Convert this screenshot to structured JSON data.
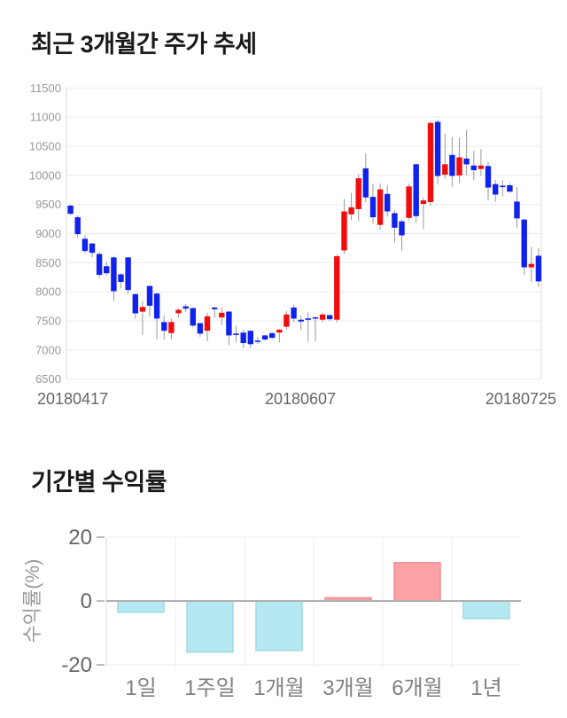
{
  "page": {
    "section1_title": "최근 3개월간 주가 추세",
    "section2_title": "기간별 수익률",
    "background": "#ffffff"
  },
  "chart_data": [
    {
      "type": "candlestick",
      "title": "최근 3개월간 주가 추세",
      "x_tick_labels": [
        "20180417",
        "20180607",
        "20180725"
      ],
      "y_ticks": [
        11500,
        11000,
        10500,
        10000,
        9500,
        9000,
        8500,
        8000,
        7500,
        7000,
        6500
      ],
      "ylim": [
        6500,
        11500
      ],
      "grid": true,
      "legend": "none",
      "colors": {
        "up": "#f30c0c",
        "down": "#1022ee",
        "wick": "#999999",
        "grid": "#ebebeb",
        "axis_border": "#dddddd",
        "y_tick_text": "#999999",
        "x_tick_text": "#666666"
      },
      "ohlc_note": "each entry is [open, high, low, close]; red = close>=open, blue = close<open",
      "ohlc": [
        [
          9480,
          9500,
          9320,
          9340
        ],
        [
          9280,
          9310,
          8930,
          8990
        ],
        [
          8910,
          8970,
          8660,
          8700
        ],
        [
          8830,
          8840,
          8590,
          8670
        ],
        [
          8650,
          8680,
          8240,
          8290
        ],
        [
          8440,
          8520,
          8280,
          8320
        ],
        [
          8590,
          8620,
          7840,
          8010
        ],
        [
          8300,
          8320,
          8060,
          8170
        ],
        [
          8590,
          8600,
          7960,
          8030
        ],
        [
          7960,
          7970,
          7540,
          7630
        ],
        [
          7660,
          7840,
          7260,
          7740
        ],
        [
          8100,
          8110,
          7570,
          7760
        ],
        [
          7970,
          7990,
          7180,
          7540
        ],
        [
          7480,
          7600,
          7180,
          7330
        ],
        [
          7290,
          7540,
          7180,
          7480
        ],
        [
          7630,
          7720,
          7560,
          7690
        ],
        [
          7750,
          7790,
          7650,
          7710
        ],
        [
          7720,
          7730,
          7390,
          7420
        ],
        [
          7460,
          7470,
          7230,
          7280
        ],
        [
          7330,
          7640,
          7150,
          7580
        ],
        [
          7730,
          7740,
          7550,
          7700
        ],
        [
          7560,
          7730,
          7430,
          7640
        ],
        [
          7660,
          7670,
          7080,
          7250
        ],
        [
          7270,
          7420,
          7140,
          7250
        ],
        [
          7300,
          7350,
          7030,
          7120
        ],
        [
          7330,
          7340,
          7030,
          7100
        ],
        [
          7150,
          7230,
          7100,
          7140
        ],
        [
          7250,
          7260,
          7160,
          7180
        ],
        [
          7290,
          7300,
          7190,
          7210
        ],
        [
          7300,
          7360,
          7130,
          7350
        ],
        [
          7400,
          7670,
          7350,
          7610
        ],
        [
          7730,
          7780,
          7480,
          7540
        ],
        [
          7520,
          7590,
          7340,
          7490
        ],
        [
          7530,
          7650,
          7140,
          7520
        ],
        [
          7550,
          7570,
          7150,
          7540
        ],
        [
          7520,
          7640,
          7480,
          7610
        ],
        [
          7600,
          7610,
          7500,
          7530
        ],
        [
          7520,
          8640,
          7480,
          8610
        ],
        [
          8710,
          9590,
          8650,
          9380
        ],
        [
          9330,
          9700,
          9230,
          9450
        ],
        [
          9420,
          10020,
          9210,
          9950
        ],
        [
          10120,
          10370,
          9540,
          9620
        ],
        [
          9630,
          9850,
          9170,
          9280
        ],
        [
          9150,
          9860,
          9070,
          9760
        ],
        [
          9680,
          9830,
          9290,
          9380
        ],
        [
          9350,
          9400,
          8850,
          9100
        ],
        [
          9210,
          9240,
          8710,
          8970
        ],
        [
          9270,
          9860,
          9230,
          9810
        ],
        [
          10190,
          10200,
          9180,
          9300
        ],
        [
          9510,
          9620,
          9080,
          9570
        ],
        [
          9540,
          10930,
          9480,
          10900
        ],
        [
          10920,
          10960,
          9840,
          9990
        ],
        [
          10010,
          10720,
          9940,
          10190
        ],
        [
          10350,
          10660,
          9810,
          9990
        ],
        [
          10000,
          10650,
          9870,
          10310
        ],
        [
          10290,
          10780,
          10000,
          10190
        ],
        [
          10170,
          10420,
          9920,
          10090
        ],
        [
          10110,
          10450,
          9990,
          10170
        ],
        [
          10160,
          10230,
          9570,
          9790
        ],
        [
          9850,
          9920,
          9550,
          9670
        ],
        [
          9810,
          9920,
          9640,
          9800
        ],
        [
          9830,
          9870,
          9700,
          9720
        ],
        [
          9550,
          9800,
          9100,
          9260
        ],
        [
          9240,
          9250,
          8290,
          8420
        ],
        [
          8420,
          8770,
          8170,
          8480
        ],
        [
          8620,
          8750,
          8090,
          8180
        ]
      ]
    },
    {
      "type": "bar",
      "title": "기간별 수익률",
      "categories": [
        "1일",
        "1주일",
        "1개월",
        "3개월",
        "6개월",
        "1년"
      ],
      "values": [
        -3.5,
        -16,
        -15.5,
        1,
        12,
        -5.5
      ],
      "xlabel": "",
      "ylabel": "수익률(%)",
      "y_ticks": [
        20,
        0,
        -20
      ],
      "ylim": [
        -20,
        20
      ],
      "grid": true,
      "legend": "none",
      "colors": {
        "positive_fill": "#fba2a7",
        "positive_border": "#f18c92",
        "negative_fill": "#b5e8f1",
        "negative_border": "#9dd9e4",
        "zero_line": "#b0b0b0",
        "grid": "#ececec",
        "axis_border": "#dddddd",
        "tick_mark": "#bbbbbb",
        "tick_text": "#666666",
        "category_text": "#808080",
        "ylabel_text": "#999999"
      }
    }
  ]
}
